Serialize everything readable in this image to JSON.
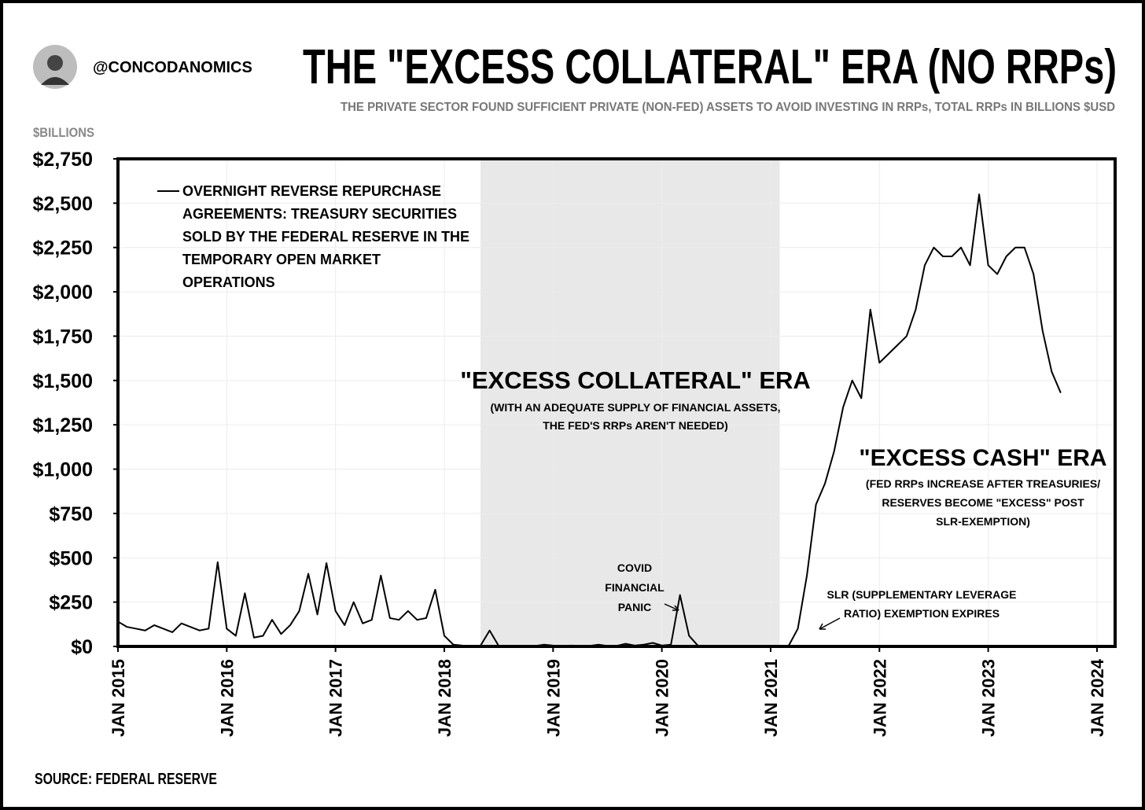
{
  "header": {
    "handle": "@CONCODANOMICS"
  },
  "chart_data": {
    "type": "line",
    "title": "THE \"EXCESS COLLATERAL\" ERA (NO RRPs)",
    "subtitle": "THE PRIVATE SECTOR FOUND SUFFICIENT PRIVATE (NON-FED) ASSETS TO AVOID INVESTING IN RRPs, TOTAL RRPs IN BILLIONS $USD",
    "y_label": "$BILLIONS",
    "source": "SOURCE: FEDERAL RESERVE",
    "x": [
      "2015-01",
      "2015-02",
      "2015-03",
      "2015-04",
      "2015-05",
      "2015-06",
      "2015-07",
      "2015-08",
      "2015-09",
      "2015-10",
      "2015-11",
      "2015-12",
      "2016-01",
      "2016-02",
      "2016-03",
      "2016-04",
      "2016-05",
      "2016-06",
      "2016-07",
      "2016-08",
      "2016-09",
      "2016-10",
      "2016-11",
      "2016-12",
      "2017-01",
      "2017-02",
      "2017-03",
      "2017-04",
      "2017-05",
      "2017-06",
      "2017-07",
      "2017-08",
      "2017-09",
      "2017-10",
      "2017-11",
      "2017-12",
      "2018-01",
      "2018-02",
      "2018-03",
      "2018-04",
      "2018-05",
      "2018-06",
      "2018-07",
      "2018-08",
      "2018-09",
      "2018-10",
      "2018-11",
      "2018-12",
      "2019-01",
      "2019-02",
      "2019-03",
      "2019-04",
      "2019-05",
      "2019-06",
      "2019-07",
      "2019-08",
      "2019-09",
      "2019-10",
      "2019-11",
      "2019-12",
      "2020-01",
      "2020-02",
      "2020-03",
      "2020-04",
      "2020-05",
      "2020-06",
      "2020-07",
      "2020-08",
      "2020-09",
      "2020-10",
      "2020-11",
      "2020-12",
      "2021-01",
      "2021-02",
      "2021-03",
      "2021-04",
      "2021-05",
      "2021-06",
      "2021-07",
      "2021-08",
      "2021-09",
      "2021-10",
      "2021-11",
      "2021-12",
      "2022-01",
      "2022-02",
      "2022-03",
      "2022-04",
      "2022-05",
      "2022-06",
      "2022-07",
      "2022-08",
      "2022-09",
      "2022-10",
      "2022-11",
      "2022-12",
      "2023-01",
      "2023-02",
      "2023-03",
      "2023-04",
      "2023-05",
      "2023-06",
      "2023-07",
      "2023-08",
      "2023-09"
    ],
    "series": [
      {
        "name": "OVERNIGHT REVERSE REPURCHASE AGREEMENTS: TREASURY SECURITIES SOLD BY THE FEDERAL RESERVE IN THE TEMPORARY OPEN MARKET OPERATIONS",
        "color": "#000000",
        "values": [
          140,
          110,
          100,
          90,
          120,
          100,
          80,
          130,
          110,
          90,
          100,
          475,
          100,
          60,
          300,
          50,
          60,
          150,
          70,
          120,
          200,
          410,
          180,
          470,
          200,
          120,
          250,
          130,
          150,
          400,
          160,
          150,
          200,
          150,
          160,
          320,
          60,
          10,
          5,
          3,
          5,
          90,
          3,
          2,
          2,
          2,
          2,
          10,
          5,
          3,
          5,
          3,
          3,
          10,
          3,
          3,
          15,
          5,
          10,
          20,
          5,
          10,
          290,
          60,
          3,
          1,
          1,
          1,
          1,
          1,
          1,
          1,
          1,
          1,
          5,
          100,
          400,
          800,
          920,
          1100,
          1350,
          1500,
          1400,
          1900,
          1600,
          1650,
          1700,
          1750,
          1900,
          2150,
          2250,
          2200,
          2200,
          2250,
          2150,
          2550,
          2150,
          2100,
          2200,
          2250,
          2250,
          2100,
          1780,
          1550,
          1430
        ]
      }
    ],
    "xlim": [
      "2015-01",
      "2024-03"
    ],
    "xticks": [
      {
        "value": "2015-01",
        "label": "JAN 2015"
      },
      {
        "value": "2016-01",
        "label": "JAN 2016"
      },
      {
        "value": "2017-01",
        "label": "JAN 2017"
      },
      {
        "value": "2018-01",
        "label": "JAN 2018"
      },
      {
        "value": "2019-01",
        "label": "JAN 2019"
      },
      {
        "value": "2020-01",
        "label": "JAN 2020"
      },
      {
        "value": "2021-01",
        "label": "JAN 2021"
      },
      {
        "value": "2022-01",
        "label": "JAN 2022"
      },
      {
        "value": "2023-01",
        "label": "JAN 2023"
      },
      {
        "value": "2024-01",
        "label": "JAN 2024"
      }
    ],
    "ylim": [
      0,
      2750
    ],
    "yticks": [
      {
        "value": 0,
        "label": "$0"
      },
      {
        "value": 250,
        "label": "$250"
      },
      {
        "value": 500,
        "label": "$500"
      },
      {
        "value": 750,
        "label": "$750"
      },
      {
        "value": 1000,
        "label": "$1,000"
      },
      {
        "value": 1250,
        "label": "$1,250"
      },
      {
        "value": 1500,
        "label": "$1,500"
      },
      {
        "value": 1750,
        "label": "$1,750"
      },
      {
        "value": 2000,
        "label": "$2,000"
      },
      {
        "value": 2250,
        "label": "$2,250"
      },
      {
        "value": 2500,
        "label": "$2,500"
      },
      {
        "value": 2750,
        "label": "$2,750"
      }
    ],
    "grid": true,
    "shaded_span": [
      "2018-05",
      "2021-02"
    ],
    "shade_color": "#e8e8e8",
    "annotations": [
      {
        "title": "\"EXCESS COLLATERAL\" ERA",
        "lines": [
          "(WITH AN ADEQUATE SUPPLY OF FINANCIAL ASSETS,",
          "THE FED'S RRPs AREN'T NEEDED)"
        ]
      },
      {
        "title": "\"EXCESS CASH\" ERA",
        "lines": [
          "(FED RRPs INCREASE AFTER TREASURIES/",
          "RESERVES BECOME \"EXCESS\" POST",
          "SLR-EXEMPTION)"
        ]
      },
      {
        "lines": [
          "COVID",
          "FINANCIAL",
          "PANIC"
        ]
      },
      {
        "lines": [
          "SLR (SUPPLEMENTARY LEVERAGE",
          "RATIO) EXEMPTION EXPIRES"
        ]
      }
    ]
  }
}
